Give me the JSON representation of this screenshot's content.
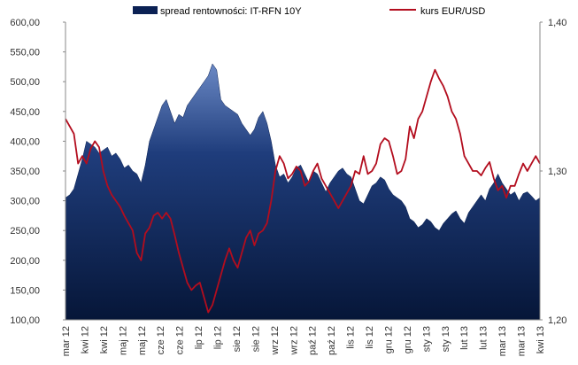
{
  "chart_data": {
    "type": "area",
    "title": "",
    "legend": {
      "placement": "top",
      "entries": [
        {
          "label": "spread rentowności: IT-RFN 10Y",
          "kind": "area",
          "color": "#0b2154"
        },
        {
          "label": "kurs EUR/USD",
          "kind": "line",
          "color": "#b30d1e"
        }
      ]
    },
    "left_axis": {
      "ylim": [
        100,
        600
      ],
      "ticks": [
        "100,00",
        "150,00",
        "200,00",
        "250,00",
        "300,00",
        "350,00",
        "400,00",
        "450,00",
        "500,00",
        "550,00",
        "600,00"
      ]
    },
    "right_axis": {
      "ylim": [
        1.2,
        1.4
      ],
      "ticks": [
        "1,20",
        "1,30",
        "1,40"
      ]
    },
    "x_ticks": [
      "mar 12",
      "kwi 12",
      "kwi 12",
      "maj 12",
      "maj 12",
      "cze 12",
      "cze 12",
      "lip 12",
      "lip 12",
      "sie 12",
      "sie 12",
      "wrz 12",
      "wrz 12",
      "paź 12",
      "paź 12",
      "lis 12",
      "lis 12",
      "gru 12",
      "gru 12",
      "sty 13",
      "sty 13",
      "lut 13",
      "lut 13",
      "mar 13",
      "mar 13",
      "kwi 13"
    ],
    "series": [
      {
        "name": "spread rentowności: IT-RFN 10Y",
        "axis": "left",
        "values": [
          305,
          310,
          320,
          345,
          370,
          400,
          395,
          390,
          380,
          385,
          390,
          375,
          380,
          370,
          355,
          360,
          350,
          345,
          330,
          360,
          400,
          420,
          440,
          460,
          470,
          450,
          430,
          445,
          440,
          460,
          470,
          480,
          490,
          500,
          510,
          530,
          520,
          470,
          460,
          455,
          450,
          445,
          430,
          420,
          410,
          420,
          440,
          450,
          430,
          400,
          360,
          340,
          345,
          330,
          340,
          355,
          360,
          345,
          330,
          350,
          345,
          330,
          315,
          330,
          340,
          350,
          355,
          345,
          340,
          320,
          300,
          295,
          310,
          325,
          330,
          340,
          335,
          320,
          310,
          305,
          300,
          290,
          270,
          265,
          255,
          260,
          270,
          265,
          255,
          250,
          262,
          270,
          278,
          283,
          270,
          262,
          280,
          290,
          300,
          310,
          300,
          320,
          330,
          345,
          330,
          320,
          310,
          315,
          300,
          312,
          315,
          308,
          300,
          305
        ]
      },
      {
        "name": "kurs EUR/USD",
        "axis": "right",
        "values": [
          1.335,
          1.33,
          1.325,
          1.305,
          1.31,
          1.305,
          1.315,
          1.32,
          1.316,
          1.3,
          1.29,
          1.284,
          1.28,
          1.276,
          1.27,
          1.265,
          1.26,
          1.245,
          1.24,
          1.258,
          1.262,
          1.27,
          1.272,
          1.268,
          1.272,
          1.268,
          1.257,
          1.245,
          1.235,
          1.225,
          1.22,
          1.223,
          1.225,
          1.215,
          1.205,
          1.21,
          1.22,
          1.23,
          1.24,
          1.248,
          1.24,
          1.235,
          1.245,
          1.255,
          1.26,
          1.25,
          1.258,
          1.26,
          1.265,
          1.28,
          1.3,
          1.31,
          1.305,
          1.295,
          1.298,
          1.303,
          1.3,
          1.29,
          1.293,
          1.3,
          1.305,
          1.295,
          1.29,
          1.285,
          1.28,
          1.275,
          1.28,
          1.285,
          1.29,
          1.3,
          1.298,
          1.31,
          1.298,
          1.3,
          1.305,
          1.318,
          1.322,
          1.32,
          1.31,
          1.298,
          1.3,
          1.308,
          1.33,
          1.322,
          1.335,
          1.34,
          1.35,
          1.36,
          1.368,
          1.362,
          1.357,
          1.35,
          1.34,
          1.335,
          1.325,
          1.31,
          1.305,
          1.3,
          1.3,
          1.297,
          1.302,
          1.306,
          1.295,
          1.287,
          1.29,
          1.282,
          1.29,
          1.29,
          1.298,
          1.305,
          1.3,
          1.305,
          1.31,
          1.305
        ]
      }
    ]
  }
}
